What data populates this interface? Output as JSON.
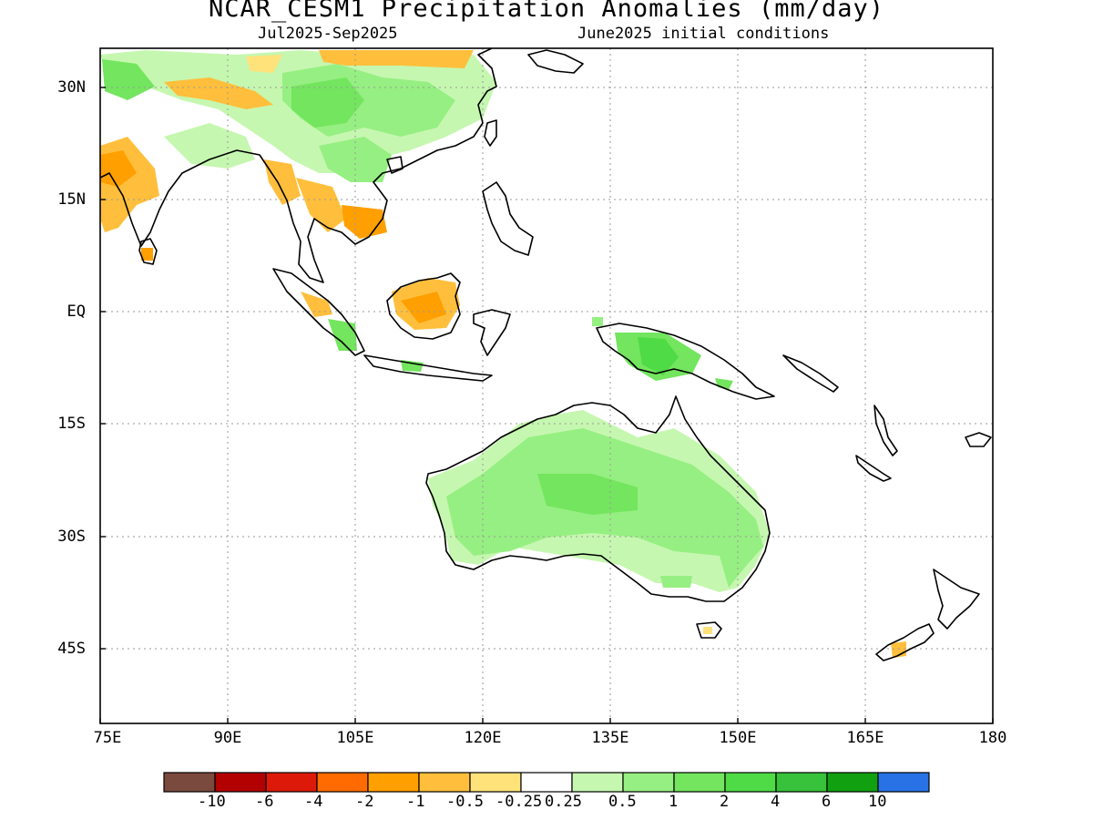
{
  "title": "NCAR_CESM1 Precipitation Anomalies (mm/day)",
  "subtitle_left": "Jul2025-Sep2025",
  "subtitle_right": "June2025 initial conditions",
  "lat_labels": [
    "30N",
    "15N",
    "EQ",
    "15S",
    "30S",
    "45S"
  ],
  "lon_labels": [
    "75E",
    "90E",
    "105E",
    "120E",
    "135E",
    "150E",
    "165E",
    "180"
  ],
  "colorbar": {
    "colors": [
      "#7b4a3e",
      "#b30000",
      "#dd1a0a",
      "#ff6b00",
      "#ff9f00",
      "#ffbf3c",
      "#ffe27a",
      "#ffffff",
      "#c6f7b0",
      "#96ef82",
      "#73e55e",
      "#4fdb46",
      "#38c13a",
      "#10a010",
      "#2872e6"
    ],
    "labels": [
      "-10",
      "-6",
      "-4",
      "-2",
      "-1",
      "-0.5",
      "-0.25",
      "0.25",
      "0.5",
      "1",
      "2",
      "4",
      "6",
      "10"
    ]
  }
}
